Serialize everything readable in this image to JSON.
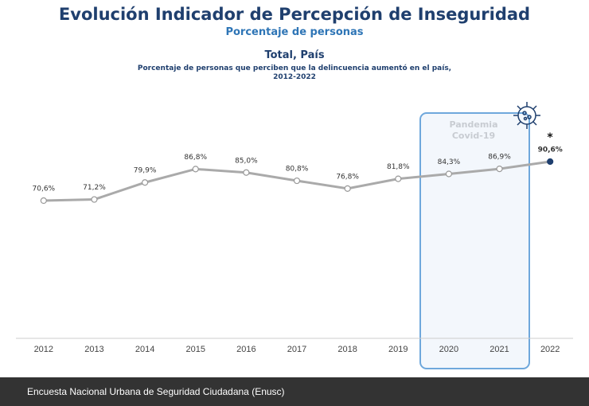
{
  "chart_data": {
    "type": "line",
    "title": "Evolución Indicador de Percepción de Inseguridad",
    "subtitle": "Porcentaje de personas",
    "chart_title": "Total, País",
    "description": [
      "Porcentaje de personas que perciben que la delincuencia aumentó en el país,",
      "2012-2022"
    ],
    "annotations": {
      "highlight": [
        "Pandemia",
        "Covid-19"
      ],
      "note_marker": "*"
    },
    "categories": [
      "2012",
      "2013",
      "2014",
      "2015",
      "2016",
      "2017",
      "2018",
      "2019",
      "2020",
      "2021",
      "2022"
    ],
    "series": [
      {
        "name": "Total, País",
        "color": "#aaaaaa",
        "values": [
          70.6,
          71.2,
          79.9,
          86.8,
          85.0,
          80.8,
          76.8,
          81.8,
          84.3,
          86.9,
          90.6
        ],
        "value_labels": [
          "70,6%",
          "71,2%",
          "79,9%",
          "86,8%",
          "85,0%",
          "80,8%",
          "76,8%",
          "81,8%",
          "84,3%",
          "86,9%",
          "90,6%"
        ]
      }
    ],
    "last_point_color": "#1f3f6e",
    "ylim": [
      0,
      120
    ],
    "footer": "Encuesta Nacional Urbana de Seguridad Ciudadana (Enusc)"
  }
}
